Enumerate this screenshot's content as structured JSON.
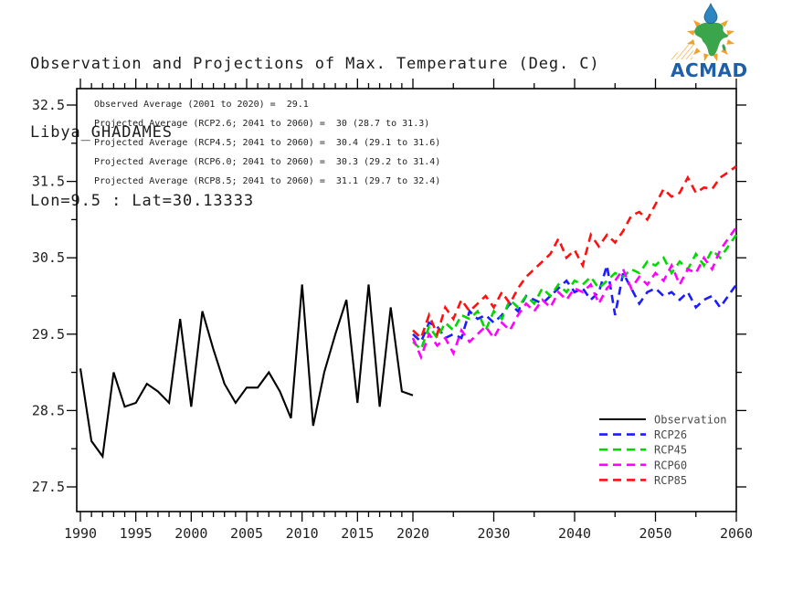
{
  "header": {
    "title_line1": "Observation and Projections of Max. Temperature (Deg. C)",
    "title_line2": "Libya_GHADAMES",
    "title_line3": "Lon=9.5 : Lat=30.13333"
  },
  "logo": {
    "text": "ACMAD",
    "colors": {
      "text": "#1d5fa8",
      "africa": "#3aa54a",
      "rays": "#f0a12c",
      "drop": "#2e86c1"
    }
  },
  "annotations": [
    "Observed Average (2001 to 2020) =  29.1",
    "Projected Average (RCP2.6; 2041 to 2060) =  30 (28.7 to 31.3)",
    "Projected Average (RCP4.5; 2041 to 2060) =  30.4 (29.1 to 31.6)",
    "Projected Average (RCP6.0; 2041 to 2060) =  30.3 (29.2 to 31.4)",
    "Projected Average (RCP8.5; 2041 to 2060) =  31.1 (29.7 to 32.4)"
  ],
  "chart_data": {
    "type": "line",
    "title": "Observation and Projections of Max. Temperature (Deg. C)",
    "xlabel": "",
    "ylabel": "",
    "grid": false,
    "ylim": [
      27.18,
      32.72
    ],
    "y_ticks_major": [
      27.5,
      28.5,
      29.5,
      30.5,
      31.5,
      32.5
    ],
    "y_ticks_minor": [
      28.0,
      29.0,
      30.0,
      31.0,
      32.0
    ],
    "x_ticks_major": [
      1990,
      1995,
      2000,
      2005,
      2010,
      2015,
      2020,
      2030,
      2040,
      2050,
      2060
    ],
    "x_axis_note": "non-uniform scale: 1990-2020 yearly minor ticks, 2020-2060 five-year minor ticks",
    "legend": {
      "position": "bottom-right"
    },
    "series": [
      {
        "name": "Observation",
        "color": "#000000",
        "style": "solid",
        "x_start": 1990,
        "values": [
          29.05,
          28.1,
          27.9,
          29.0,
          28.55,
          28.6,
          28.85,
          28.75,
          28.6,
          29.7,
          28.55,
          29.8,
          29.3,
          28.85,
          28.6,
          28.8,
          28.8,
          29.0,
          28.75,
          28.4,
          30.15,
          28.3,
          29.0,
          29.5,
          29.95,
          28.6,
          30.15,
          28.55,
          29.85,
          28.75,
          28.7
        ]
      },
      {
        "name": "RCP26",
        "color": "#1c1cff",
        "style": "dashed",
        "x_start": 2020,
        "values": [
          29.5,
          29.4,
          29.65,
          29.6,
          29.45,
          29.5,
          29.45,
          29.8,
          29.7,
          29.75,
          29.65,
          29.75,
          29.9,
          29.8,
          30.0,
          29.95,
          29.9,
          30.0,
          30.1,
          30.2,
          30.05,
          30.1,
          29.95,
          30.05,
          30.4,
          29.75,
          30.3,
          30.1,
          29.9,
          30.05,
          30.1,
          30.0,
          30.05,
          29.95,
          30.05,
          29.85,
          29.95,
          30.0,
          29.85,
          30.0,
          30.15
        ]
      },
      {
        "name": "RCP45",
        "color": "#00d800",
        "style": "dashed",
        "x_start": 2020,
        "values": [
          29.4,
          29.3,
          29.6,
          29.45,
          29.65,
          29.55,
          29.75,
          29.7,
          29.8,
          29.55,
          29.8,
          29.7,
          29.95,
          29.85,
          30.0,
          29.9,
          30.1,
          30.0,
          30.15,
          30.05,
          30.2,
          30.15,
          30.25,
          30.1,
          30.2,
          30.3,
          30.25,
          30.35,
          30.3,
          30.45,
          30.4,
          30.5,
          30.3,
          30.45,
          30.35,
          30.55,
          30.4,
          30.6,
          30.5,
          30.65,
          30.8
        ]
      },
      {
        "name": "RCP60",
        "color": "#ff00ff",
        "style": "dashed",
        "x_start": 2020,
        "values": [
          29.45,
          29.2,
          29.5,
          29.35,
          29.45,
          29.25,
          29.55,
          29.4,
          29.5,
          29.6,
          29.45,
          29.65,
          29.55,
          29.75,
          29.9,
          29.8,
          29.95,
          29.85,
          30.05,
          29.95,
          30.1,
          30.05,
          30.15,
          29.9,
          30.1,
          30.2,
          30.35,
          30.1,
          30.25,
          30.15,
          30.3,
          30.2,
          30.4,
          30.15,
          30.35,
          30.3,
          30.5,
          30.35,
          30.6,
          30.75,
          30.9
        ]
      },
      {
        "name": "RCP85",
        "color": "#ff1010",
        "style": "dashed",
        "x_start": 2020,
        "values": [
          29.55,
          29.45,
          29.75,
          29.5,
          29.85,
          29.7,
          29.95,
          29.8,
          29.9,
          30.0,
          29.85,
          30.05,
          29.9,
          30.1,
          30.25,
          30.35,
          30.45,
          30.55,
          30.75,
          30.5,
          30.6,
          30.4,
          30.8,
          30.65,
          30.8,
          30.7,
          30.85,
          31.05,
          31.1,
          31.0,
          31.2,
          31.4,
          31.3,
          31.35,
          31.55,
          31.35,
          31.42,
          31.4,
          31.55,
          31.62,
          31.7
        ]
      }
    ],
    "stats": {
      "observed_average_2001_2020": 29.1,
      "projected_average_2041_2060": {
        "RCP26": 30.0,
        "RCP45": 30.4,
        "RCP60": 30.3,
        "RCP85": 31.1
      },
      "projected_range_2041_2060": {
        "RCP26": [
          28.7,
          31.3
        ],
        "RCP45": [
          29.1,
          31.6
        ],
        "RCP60": [
          29.2,
          31.4
        ],
        "RCP85": [
          29.7,
          32.4
        ]
      }
    }
  }
}
